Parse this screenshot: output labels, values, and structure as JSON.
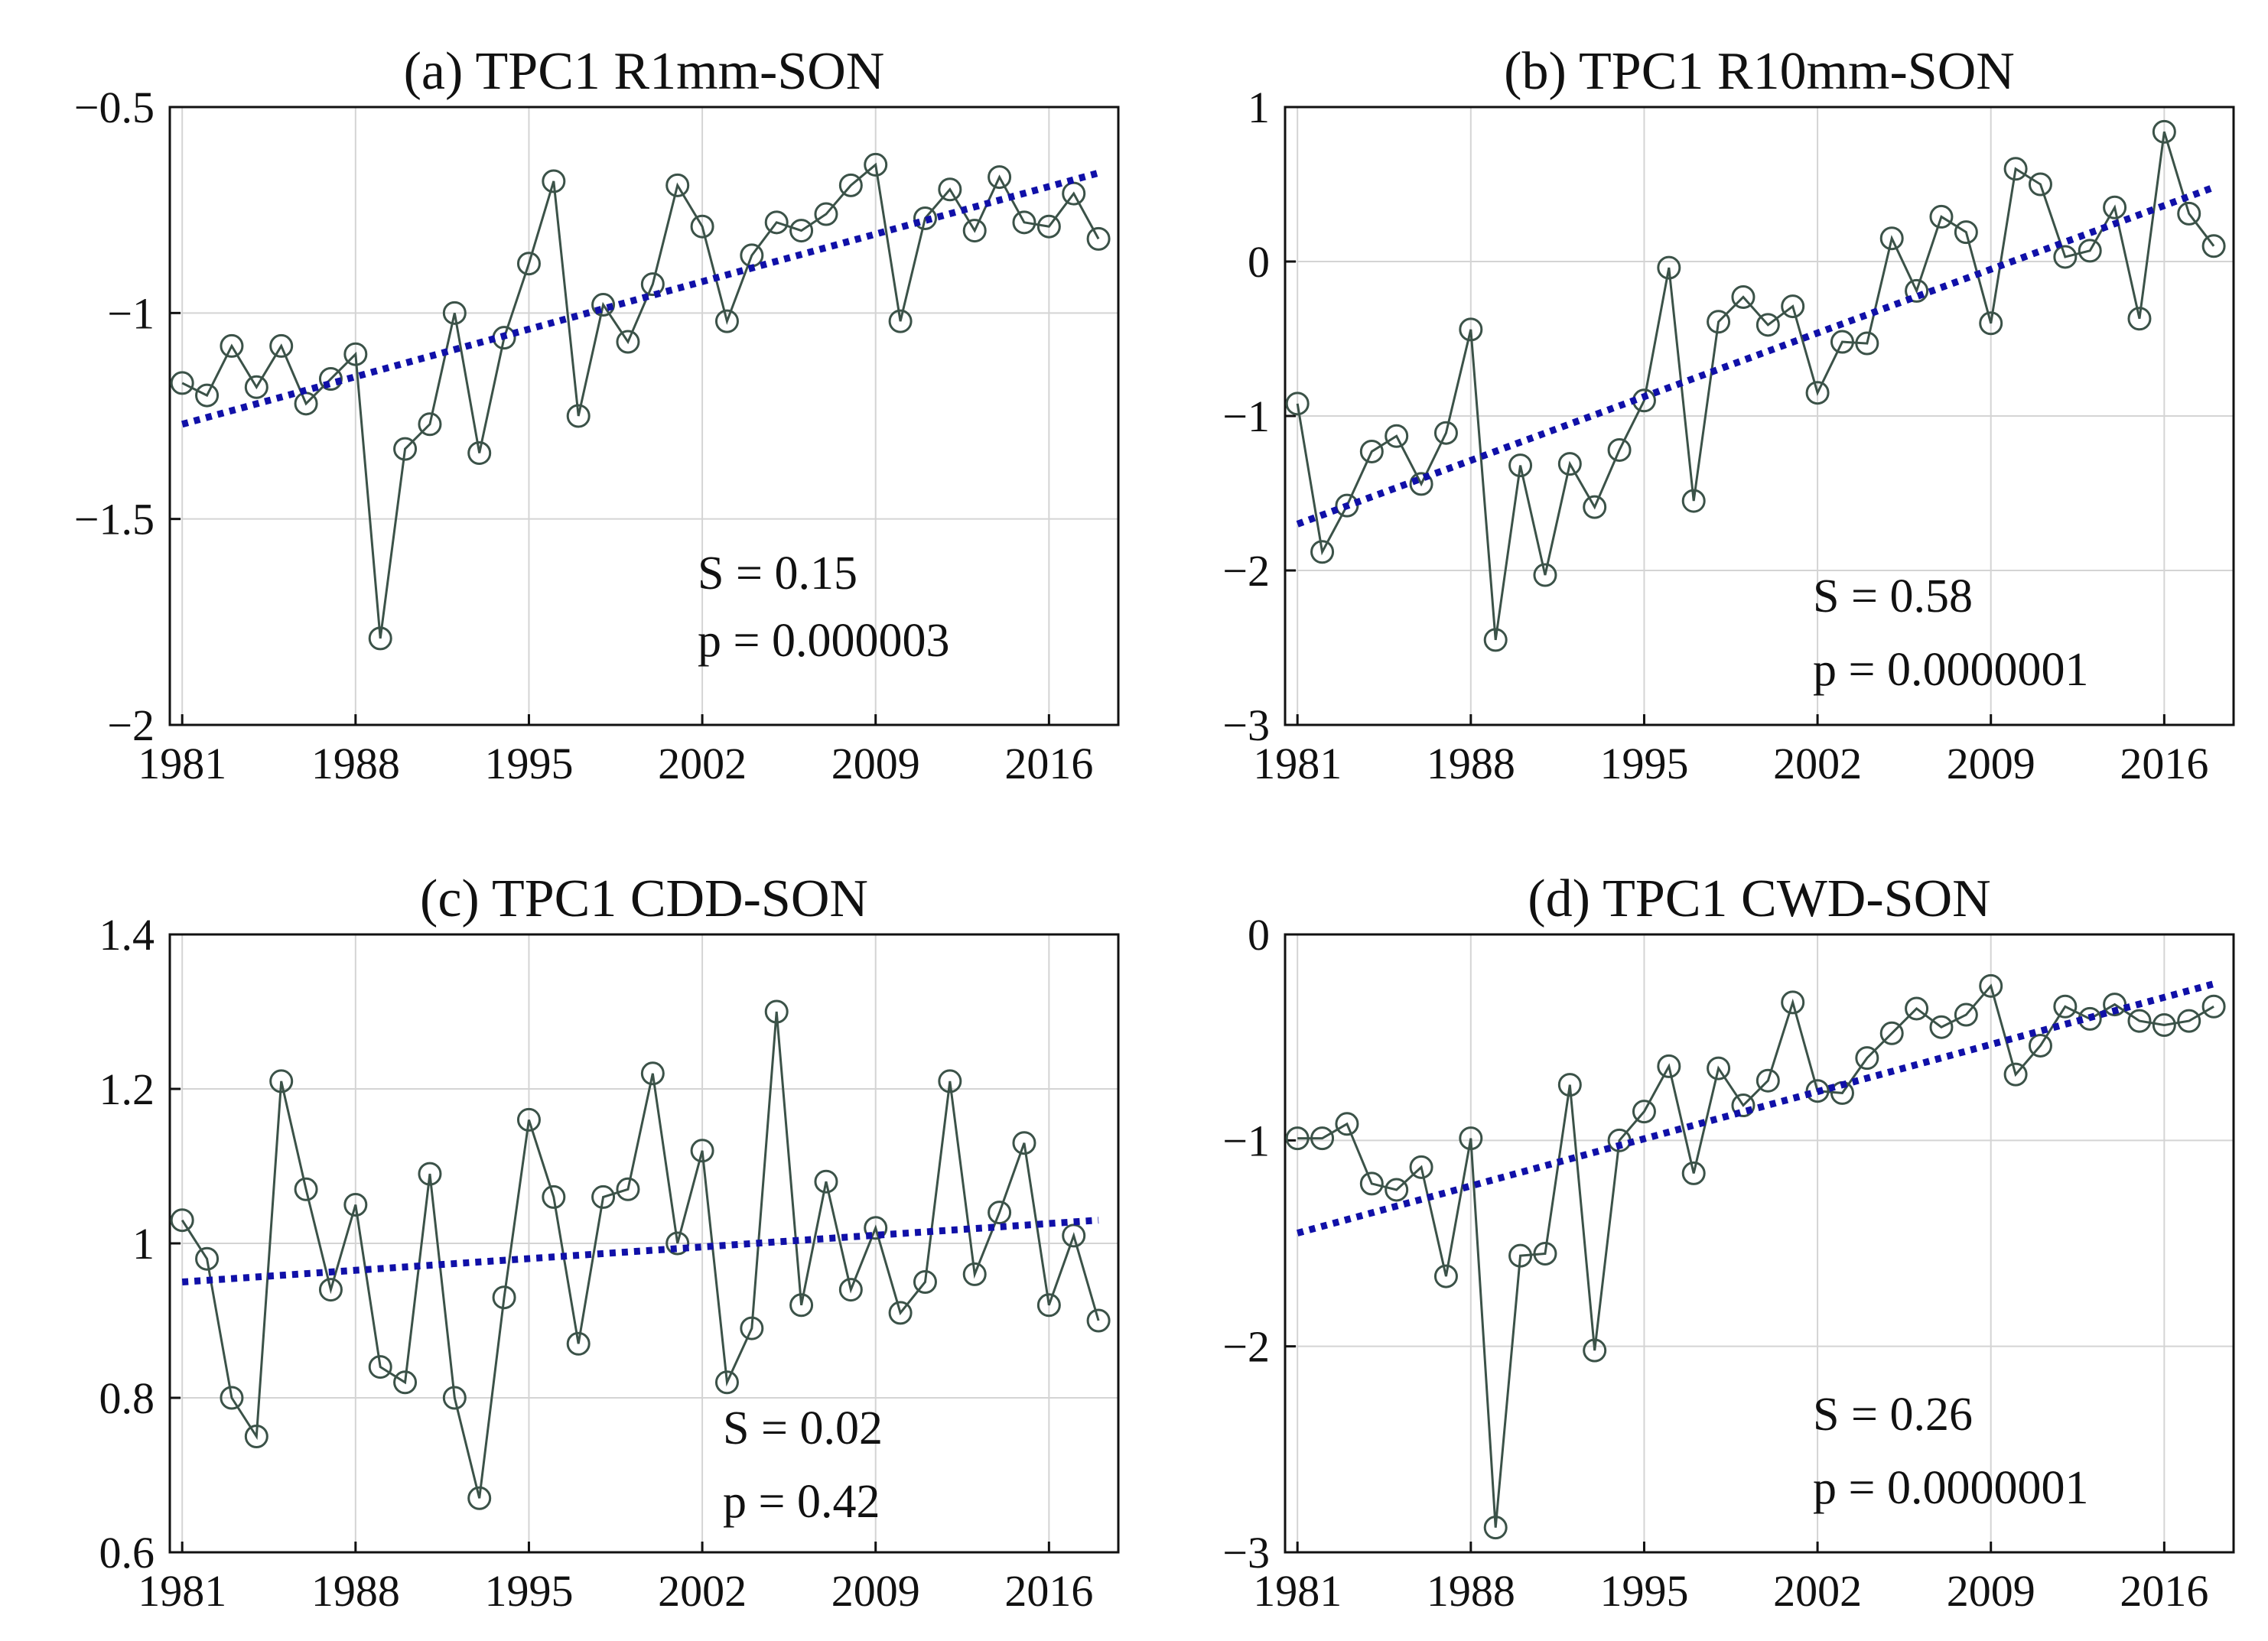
{
  "chart_data": [
    {
      "type": "line",
      "title": "(a) TPC1 R1mm-SON",
      "xlabel": "",
      "ylabel": "",
      "xlim": [
        1980.5,
        2018.8
      ],
      "ylim": [
        -2,
        -0.5
      ],
      "xticks": [
        1981,
        1988,
        1995,
        2002,
        2009,
        2016
      ],
      "xtick_labels": [
        "1981",
        "1988",
        "1995",
        "2002",
        "2009",
        "2016"
      ],
      "yticks": [
        -0.5,
        -1,
        -1.5,
        -2
      ],
      "ytick_labels": [
        "−0.5",
        "−1",
        "−1.5",
        "−2"
      ],
      "grid": true,
      "series": [
        {
          "name": "TPC1",
          "style": "line-circle",
          "x": [
            1981,
            1982,
            1983,
            1984,
            1985,
            1986,
            1987,
            1988,
            1989,
            1990,
            1991,
            1992,
            1993,
            1994,
            1995,
            1996,
            1997,
            1998,
            1999,
            2000,
            2001,
            2002,
            2003,
            2004,
            2005,
            2006,
            2007,
            2008,
            2009,
            2010,
            2011,
            2012,
            2013,
            2014,
            2015,
            2016,
            2017,
            2018
          ],
          "values": [
            -1.17,
            -1.2,
            -1.08,
            -1.18,
            -1.08,
            -1.22,
            -1.16,
            -1.1,
            -1.79,
            -1.33,
            -1.27,
            -1.0,
            -1.34,
            -1.06,
            -0.88,
            -0.68,
            -1.25,
            -0.98,
            -1.07,
            -0.93,
            -0.69,
            -0.79,
            -1.02,
            -0.86,
            -0.78,
            -0.8,
            -0.76,
            -0.69,
            -0.64,
            -1.02,
            -0.77,
            -0.7,
            -0.8,
            -0.67,
            -0.78,
            -0.79,
            -0.71,
            -0.82
          ]
        },
        {
          "name": "Trend",
          "style": "dotted",
          "x": [
            1981,
            2018
          ],
          "values": [
            -1.27,
            -0.66
          ]
        }
      ],
      "annotations": [
        "S = 0.15",
        "p = 0.000003"
      ]
    },
    {
      "type": "line",
      "title": "(b) TPC1 R10mm-SON",
      "xlabel": "",
      "ylabel": "",
      "xlim": [
        1980.5,
        2018.8
      ],
      "ylim": [
        -3,
        1
      ],
      "xticks": [
        1981,
        1988,
        1995,
        2002,
        2009,
        2016
      ],
      "xtick_labels": [
        "1981",
        "1988",
        "1995",
        "2002",
        "2009",
        "2016"
      ],
      "yticks": [
        1,
        0,
        -1,
        -2,
        -3
      ],
      "ytick_labels": [
        "1",
        "0",
        "−1",
        "−2",
        "−3"
      ],
      "grid": true,
      "series": [
        {
          "name": "TPC1",
          "style": "line-circle",
          "x": [
            1981,
            1982,
            1983,
            1984,
            1985,
            1986,
            1987,
            1988,
            1989,
            1990,
            1991,
            1992,
            1993,
            1994,
            1995,
            1996,
            1997,
            1998,
            1999,
            2000,
            2001,
            2002,
            2003,
            2004,
            2005,
            2006,
            2007,
            2008,
            2009,
            2010,
            2011,
            2012,
            2013,
            2014,
            2015,
            2016,
            2017,
            2018
          ],
          "values": [
            -0.92,
            -1.88,
            -1.58,
            -1.23,
            -1.13,
            -1.44,
            -1.11,
            -0.44,
            -2.45,
            -1.32,
            -2.03,
            -1.31,
            -1.59,
            -1.22,
            -0.9,
            -0.04,
            -1.55,
            -0.39,
            -0.23,
            -0.41,
            -0.29,
            -0.85,
            -0.52,
            -0.53,
            0.15,
            -0.19,
            0.29,
            0.19,
            -0.4,
            0.6,
            0.5,
            0.03,
            0.07,
            0.35,
            -0.37,
            0.84,
            0.31,
            0.1
          ]
        },
        {
          "name": "Trend",
          "style": "dotted",
          "x": [
            1981,
            2018
          ],
          "values": [
            -1.7,
            0.48
          ]
        }
      ],
      "annotations": [
        "S = 0.58",
        "p = 0.0000001"
      ]
    },
    {
      "type": "line",
      "title": "(c) TPC1 CDD-SON",
      "xlabel": "",
      "ylabel": "",
      "xlim": [
        1980.5,
        2018.8
      ],
      "ylim": [
        0.6,
        1.4
      ],
      "xticks": [
        1981,
        1988,
        1995,
        2002,
        2009,
        2016
      ],
      "xtick_labels": [
        "1981",
        "1988",
        "1995",
        "2002",
        "2009",
        "2016"
      ],
      "yticks": [
        1.4,
        1.2,
        1,
        0.8,
        0.6
      ],
      "ytick_labels": [
        "1.4",
        "1.2",
        "1",
        "0.8",
        "0.6"
      ],
      "grid": true,
      "series": [
        {
          "name": "TPC1",
          "style": "line-circle",
          "x": [
            1981,
            1982,
            1983,
            1984,
            1985,
            1986,
            1987,
            1988,
            1989,
            1990,
            1991,
            1992,
            1993,
            1994,
            1995,
            1996,
            1997,
            1998,
            1999,
            2000,
            2001,
            2002,
            2003,
            2004,
            2005,
            2006,
            2007,
            2008,
            2009,
            2010,
            2011,
            2012,
            2013,
            2014,
            2015,
            2016,
            2017,
            2018
          ],
          "values": [
            1.03,
            0.98,
            0.8,
            0.75,
            1.21,
            1.07,
            0.94,
            1.05,
            0.84,
            0.82,
            1.09,
            0.8,
            0.67,
            0.93,
            1.16,
            1.06,
            0.87,
            1.06,
            1.07,
            1.22,
            1.0,
            1.12,
            0.82,
            0.89,
            1.3,
            0.92,
            1.08,
            0.94,
            1.02,
            0.91,
            0.95,
            1.21,
            0.96,
            1.04,
            1.13,
            0.92,
            1.01,
            0.9
          ]
        },
        {
          "name": "Trend",
          "style": "dotted",
          "x": [
            1981,
            2018
          ],
          "values": [
            0.95,
            1.03
          ]
        }
      ],
      "annotations": [
        "S = 0.02",
        "p = 0.42"
      ]
    },
    {
      "type": "line",
      "title": "(d) TPC1 CWD-SON",
      "xlabel": "",
      "ylabel": "",
      "xlim": [
        1980.5,
        2018.8
      ],
      "ylim": [
        -3,
        0
      ],
      "xticks": [
        1981,
        1988,
        1995,
        2002,
        2009,
        2016
      ],
      "xtick_labels": [
        "1981",
        "1988",
        "1995",
        "2002",
        "2009",
        "2016"
      ],
      "yticks": [
        0,
        -1,
        -2,
        -3
      ],
      "ytick_labels": [
        "0",
        "−1",
        "−2",
        "−3"
      ],
      "grid": true,
      "series": [
        {
          "name": "TPC1",
          "style": "line-circle",
          "x": [
            1981,
            1982,
            1983,
            1984,
            1985,
            1986,
            1987,
            1988,
            1989,
            1990,
            1991,
            1992,
            1993,
            1994,
            1995,
            1996,
            1997,
            1998,
            1999,
            2000,
            2001,
            2002,
            2003,
            2004,
            2005,
            2006,
            2007,
            2008,
            2009,
            2010,
            2011,
            2012,
            2013,
            2014,
            2015,
            2016,
            2017,
            2018
          ],
          "values": [
            -0.99,
            -0.99,
            -0.92,
            -1.21,
            -1.24,
            -1.13,
            -1.66,
            -0.99,
            -2.88,
            -1.56,
            -1.55,
            -0.73,
            -2.02,
            -1.0,
            -0.86,
            -0.64,
            -1.16,
            -0.65,
            -0.83,
            -0.71,
            -0.33,
            -0.76,
            -0.77,
            -0.6,
            -0.48,
            -0.36,
            -0.45,
            -0.39,
            -0.25,
            -0.68,
            -0.54,
            -0.35,
            -0.41,
            -0.34,
            -0.42,
            -0.44,
            -0.42,
            -0.35
          ]
        },
        {
          "name": "Trend",
          "style": "dotted",
          "x": [
            1981,
            2018
          ],
          "values": [
            -1.45,
            -0.24
          ]
        }
      ],
      "annotations": [
        "S = 0.26",
        "p = 0.0000001"
      ]
    }
  ]
}
